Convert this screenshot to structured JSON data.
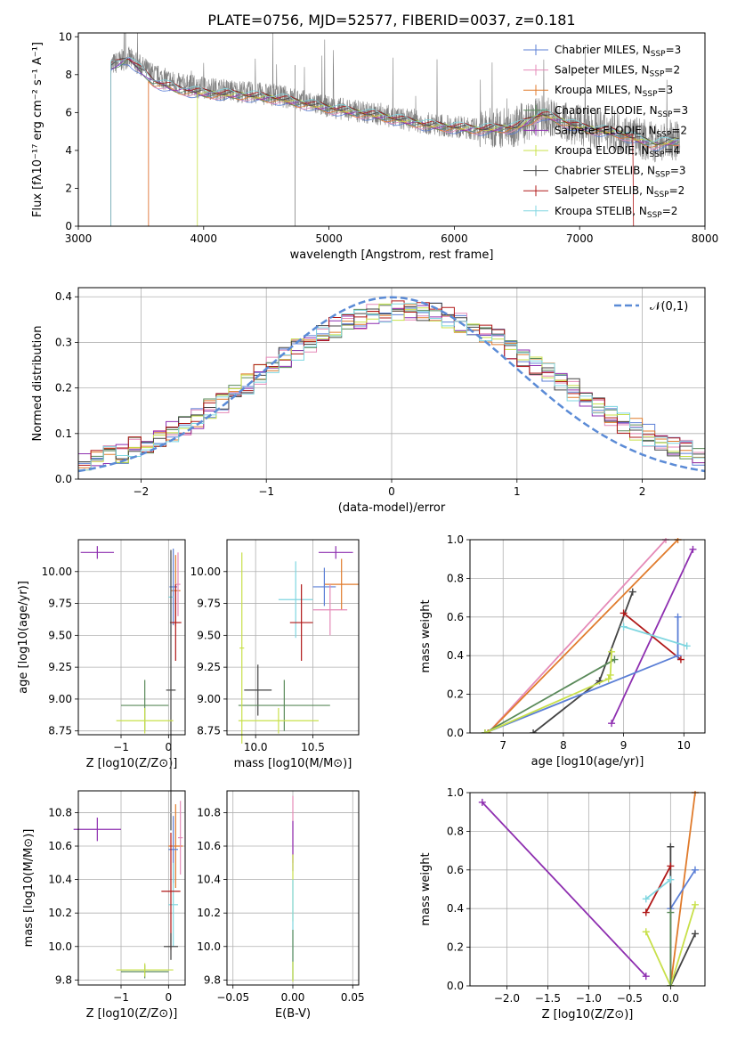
{
  "figure_title": "PLATE=0756, MJD=52577, FIBERID=0037, z=0.181",
  "colors": {
    "chabrier_miles": "#5b7fd6",
    "salpeter_miles": "#e58ab8",
    "kroupa_miles": "#e07b2c",
    "chabrier_elodie": "#5a8a5a",
    "salpeter_elodie": "#8e2fb0",
    "kroupa_elodie": "#c8e04a",
    "chabrier_stelib": "#444444",
    "salpeter_stelib": "#b01818",
    "kroupa_stelib": "#7fd6e0",
    "data": "#808080",
    "gaussian": "#5b8bd6"
  },
  "chart_data": [
    {
      "id": "spectrum",
      "type": "line",
      "title": "PLATE=0756, MJD=52577, FIBERID=0037, z=0.181",
      "xlabel": "wavelength [Angstrom, rest frame]",
      "ylabel": "Flux [fλ10⁻¹⁷ erg cm⁻² s⁻¹ A⁻¹]",
      "xlim": [
        3000,
        8000
      ],
      "ylim": [
        0,
        10.2
      ],
      "xticks": [
        3000,
        4000,
        5000,
        6000,
        7000,
        8000
      ],
      "yticks": [
        0,
        2,
        4,
        6,
        8,
        10
      ],
      "grid": false,
      "legend_position": "top-right",
      "legend": [
        {
          "model": "Chabrier MILES",
          "nssp": "3",
          "color_key": "chabrier_miles"
        },
        {
          "model": "Salpeter MILES",
          "nssp": "2",
          "color_key": "salpeter_miles"
        },
        {
          "model": "Kroupa MILES",
          "nssp": "3",
          "color_key": "kroupa_miles"
        },
        {
          "model": "Chabrier ELODIE",
          "nssp": "3",
          "color_key": "chabrier_elodie"
        },
        {
          "model": "Salpeter ELODIE",
          "nssp": "2",
          "color_key": "salpeter_elodie"
        },
        {
          "model": "Kroupa ELODIE",
          "nssp": "4",
          "color_key": "kroupa_elodie"
        },
        {
          "model": "Chabrier STELIB",
          "nssp": "3",
          "color_key": "chabrier_stelib"
        },
        {
          "model": "Salpeter STELIB",
          "nssp": "2",
          "color_key": "salpeter_stelib"
        },
        {
          "model": "Kroupa STELIB",
          "nssp": "2",
          "color_key": "kroupa_stelib"
        }
      ],
      "nssp_label": "N_SSP=",
      "data_envelope": {
        "x": [
          3260,
          3400,
          3600,
          3800,
          4000,
          4300,
          4600,
          5000,
          5400,
          5800,
          6200,
          6500,
          6700,
          7000,
          7300,
          7600,
          7800
        ],
        "y": [
          8.5,
          8.9,
          8.0,
          7.5,
          7.3,
          7.1,
          6.9,
          6.3,
          5.9,
          5.4,
          5.1,
          5.3,
          5.8,
          5.3,
          5.0,
          4.4,
          4.6
        ]
      },
      "model_envelope": {
        "x": [
          3260,
          3400,
          3600,
          3800,
          4000,
          4300,
          4600,
          5000,
          5400,
          5800,
          6200,
          6500,
          6700,
          7000,
          7300,
          7600,
          7800
        ],
        "y": [
          8.4,
          8.8,
          7.6,
          7.2,
          7.0,
          6.9,
          6.7,
          6.2,
          5.8,
          5.3,
          5.1,
          5.2,
          5.9,
          5.2,
          4.9,
          4.3,
          4.5
        ]
      },
      "model_start_wavelength": [
        3260,
        3560,
        3560,
        3260,
        3260,
        3950,
        3260,
        3260,
        3260
      ],
      "model_end_wavelength": [
        7800,
        7800,
        7800,
        7800,
        7800,
        7800,
        7800,
        7430,
        7800
      ]
    },
    {
      "id": "residuals",
      "type": "histogram",
      "xlabel": "(data-model)/error",
      "ylabel": "Normed distribution",
      "xlim": [
        -2.5,
        2.5
      ],
      "ylim": [
        0,
        0.42
      ],
      "xticks": [
        -2,
        -1,
        0,
        1,
        2
      ],
      "yticks": [
        0.0,
        0.1,
        0.2,
        0.3,
        0.4
      ],
      "grid": true,
      "legend_position": "top-right",
      "gaussian_label": "𝒩(0,1)",
      "bin_width": 0.1
    },
    {
      "id": "age_vs_Z",
      "type": "errorbar",
      "xlabel": "Z [log10(Z/Z⊙)]",
      "ylabel": "age  [log10(age/yr)]",
      "xlim": [
        -1.9,
        0.35
      ],
      "ylim": [
        8.72,
        10.25
      ],
      "xticks": [
        -1,
        0
      ],
      "yticks": [
        8.75,
        9.0,
        9.25,
        9.5,
        9.75,
        10.0
      ],
      "grid": true,
      "points": [
        {
          "x": -1.5,
          "y": 10.15,
          "xerr": 0.35,
          "yerr": 0.05,
          "color_key": "salpeter_elodie"
        },
        {
          "x": 0.15,
          "y": 9.85,
          "xerr": 0.1,
          "yerr": 0.28,
          "color_key": "kroupa_miles"
        },
        {
          "x": 0.2,
          "y": 9.9,
          "xerr": 0.05,
          "yerr": 0.25,
          "color_key": "salpeter_miles"
        },
        {
          "x": 0.1,
          "y": 9.88,
          "xerr": 0.08,
          "yerr": 0.3,
          "color_key": "chabrier_miles"
        },
        {
          "x": 0.05,
          "y": 9.8,
          "xerr": 0.05,
          "yerr": 0.3,
          "color_key": "kroupa_stelib"
        },
        {
          "x": 0.15,
          "y": 9.6,
          "xerr": 0.12,
          "yerr": 0.3,
          "color_key": "salpeter_stelib"
        },
        {
          "x": 0.05,
          "y": 9.07,
          "xerr": 0.1,
          "yerr": 1.1,
          "color_key": "chabrier_stelib"
        },
        {
          "x": -0.5,
          "y": 8.95,
          "xerr": 0.5,
          "yerr": 0.2,
          "color_key": "chabrier_elodie"
        },
        {
          "x": -0.5,
          "y": 8.83,
          "xerr": 0.6,
          "yerr": 0.1,
          "color_key": "kroupa_elodie"
        }
      ]
    },
    {
      "id": "age_vs_mass",
      "type": "errorbar",
      "xlabel": "mass [log10(M/M⊙)]",
      "ylabel": "",
      "xlim": [
        9.75,
        10.9
      ],
      "ylim": [
        8.72,
        10.25
      ],
      "xticks": [
        10.0,
        10.5
      ],
      "yticks": [
        8.75,
        9.0,
        9.25,
        9.5,
        9.75,
        10.0
      ],
      "grid": true,
      "points": [
        {
          "x": 10.7,
          "y": 10.15,
          "xerr": 0.15,
          "yerr": 0.05,
          "color_key": "salpeter_elodie"
        },
        {
          "x": 10.75,
          "y": 9.9,
          "xerr": 0.15,
          "yerr": 0.2,
          "color_key": "kroupa_miles"
        },
        {
          "x": 10.6,
          "y": 9.88,
          "xerr": 0.1,
          "yerr": 0.15,
          "color_key": "chabrier_miles"
        },
        {
          "x": 10.65,
          "y": 9.7,
          "xerr": 0.15,
          "yerr": 0.2,
          "color_key": "salpeter_miles"
        },
        {
          "x": 10.35,
          "y": 9.78,
          "xerr": 0.15,
          "yerr": 0.3,
          "color_key": "kroupa_stelib"
        },
        {
          "x": 10.4,
          "y": 9.6,
          "xerr": 0.1,
          "yerr": 0.3,
          "color_key": "salpeter_stelib"
        },
        {
          "x": 10.02,
          "y": 9.07,
          "xerr": 0.12,
          "yerr": 0.2,
          "color_key": "chabrier_stelib"
        },
        {
          "x": 10.25,
          "y": 8.95,
          "xerr": 0.4,
          "yerr": 0.2,
          "color_key": "chabrier_elodie"
        },
        {
          "x": 10.2,
          "y": 8.83,
          "xerr": 0.35,
          "yerr": 0.1,
          "color_key": "kroupa_elodie"
        },
        {
          "x": 9.88,
          "y": 9.4,
          "xerr": 0.02,
          "yerr": 0.75,
          "color_key": "kroupa_elodie"
        }
      ]
    },
    {
      "id": "weight_vs_age",
      "type": "line",
      "xlabel": "age  [log10(age/yr)]",
      "ylabel": "mass weight",
      "xlim": [
        6.45,
        10.35
      ],
      "ylim": [
        0,
        1.0
      ],
      "xticks": [
        7,
        8,
        9,
        10
      ],
      "yticks": [
        0.0,
        0.2,
        0.4,
        0.6,
        0.8,
        1.0
      ],
      "grid": true,
      "series": [
        {
          "color_key": "salpeter_miles",
          "x": [
            6.75,
            9.7
          ],
          "y": [
            0.0,
            1.0
          ]
        },
        {
          "color_key": "kroupa_miles",
          "x": [
            6.75,
            9.9
          ],
          "y": [
            0.0,
            1.0
          ]
        },
        {
          "color_key": "salpeter_elodie",
          "x": [
            8.8,
            10.15
          ],
          "y": [
            0.05,
            0.95
          ]
        },
        {
          "color_key": "chabrier_stelib",
          "x": [
            7.5,
            8.6,
            9.15
          ],
          "y": [
            0.0,
            0.27,
            0.73
          ]
        },
        {
          "color_key": "salpeter_stelib",
          "x": [
            9.0,
            9.95
          ],
          "y": [
            0.62,
            0.38
          ]
        },
        {
          "color_key": "chabrier_miles",
          "x": [
            6.7,
            9.9,
            9.9
          ],
          "y": [
            0.0,
            0.4,
            0.6
          ]
        },
        {
          "color_key": "kroupa_stelib",
          "x": [
            9.0,
            10.05
          ],
          "y": [
            0.55,
            0.45
          ]
        },
        {
          "color_key": "chabrier_elodie",
          "x": [
            6.7,
            8.85
          ],
          "y": [
            0.0,
            0.38
          ]
        },
        {
          "color_key": "kroupa_elodie",
          "x": [
            6.7,
            8.75,
            8.78,
            8.8
          ],
          "y": [
            0.0,
            0.28,
            0.3,
            0.42
          ]
        }
      ]
    },
    {
      "id": "mass_vs_Z",
      "type": "errorbar",
      "xlabel": "Z [log10(Z/Z⊙)]",
      "ylabel": "mass [log10(M/M⊙)]",
      "xlim": [
        -1.9,
        0.35
      ],
      "ylim": [
        9.77,
        10.93
      ],
      "xticks": [
        -1,
        0
      ],
      "yticks": [
        9.8,
        10.0,
        10.2,
        10.4,
        10.6,
        10.8
      ],
      "grid": true,
      "points": [
        {
          "x": -1.5,
          "y": 10.7,
          "xerr": 0.5,
          "yerr": 0.07,
          "color_key": "salpeter_elodie"
        },
        {
          "x": 0.15,
          "y": 10.6,
          "xerr": 0.15,
          "yerr": 0.25,
          "color_key": "kroupa_miles"
        },
        {
          "x": 0.25,
          "y": 10.65,
          "xerr": 0.05,
          "yerr": 0.22,
          "color_key": "salpeter_miles"
        },
        {
          "x": 0.1,
          "y": 10.58,
          "xerr": 0.1,
          "yerr": 0.2,
          "color_key": "chabrier_miles"
        },
        {
          "x": 0.1,
          "y": 10.25,
          "xerr": 0.1,
          "yerr": 0.25,
          "color_key": "kroupa_stelib"
        },
        {
          "x": 0.05,
          "y": 10.33,
          "xerr": 0.2,
          "yerr": 0.35,
          "color_key": "salpeter_stelib"
        },
        {
          "x": 0.05,
          "y": 10.0,
          "xerr": 0.15,
          "yerr": 0.08,
          "color_key": "chabrier_stelib"
        },
        {
          "x": -0.5,
          "y": 9.85,
          "xerr": 0.5,
          "yerr": 0.04,
          "color_key": "chabrier_elodie"
        },
        {
          "x": -0.5,
          "y": 9.86,
          "xerr": 0.6,
          "yerr": 0.04,
          "color_key": "kroupa_elodie"
        }
      ]
    },
    {
      "id": "mass_vs_ebv",
      "type": "errorbar",
      "xlabel": "E(B-V)",
      "ylabel": "",
      "xlim": [
        -0.055,
        0.055
      ],
      "ylim": [
        9.77,
        10.93
      ],
      "xticks": [
        -0.05,
        0.0,
        0.05
      ],
      "yticks": [
        9.8,
        10.0,
        10.2,
        10.4,
        10.6,
        10.8
      ],
      "grid": true,
      "points": [
        {
          "x": 0.0,
          "y": 10.7,
          "xerr": 0.0,
          "yerr": 0.2,
          "color_key": "salpeter_miles"
        },
        {
          "x": 0.0,
          "y": 10.6,
          "xerr": 0.0,
          "yerr": 0.15,
          "color_key": "salpeter_elodie"
        },
        {
          "x": 0.0,
          "y": 10.35,
          "xerr": 0.0,
          "yerr": 0.2,
          "color_key": "kroupa_elodie"
        },
        {
          "x": 0.0,
          "y": 10.1,
          "xerr": 0.0,
          "yerr": 0.3,
          "color_key": "kroupa_stelib"
        },
        {
          "x": 0.0,
          "y": 9.95,
          "xerr": 0.0,
          "yerr": 0.15,
          "color_key": "chabrier_elodie"
        },
        {
          "x": 0.0,
          "y": 9.85,
          "xerr": 0.0,
          "yerr": 0.06,
          "color_key": "kroupa_elodie"
        }
      ]
    },
    {
      "id": "weight_vs_Z",
      "type": "line",
      "xlabel": "Z [log10(Z/Z⊙)]",
      "ylabel": "mass weight",
      "xlim": [
        -2.45,
        0.42
      ],
      "ylim": [
        0,
        1.0
      ],
      "xticks": [
        -2.0,
        -1.5,
        -1.0,
        -0.5,
        0.0
      ],
      "yticks": [
        0.0,
        0.2,
        0.4,
        0.6,
        0.8,
        1.0
      ],
      "grid": true,
      "series": [
        {
          "color_key": "salpeter_elodie",
          "x": [
            -2.3,
            -0.3
          ],
          "y": [
            0.95,
            0.05
          ]
        },
        {
          "color_key": "kroupa_miles",
          "x": [
            0.0,
            0.3
          ],
          "y": [
            0.0,
            1.0
          ]
        },
        {
          "color_key": "chabrier_miles",
          "x": [
            0.0,
            0.3
          ],
          "y": [
            0.4,
            0.6
          ]
        },
        {
          "color_key": "chabrier_stelib",
          "x": [
            0.0,
            0.0,
            0.3
          ],
          "y": [
            0.72,
            0.0,
            0.27
          ]
        },
        {
          "color_key": "salpeter_stelib",
          "x": [
            -0.3,
            0.0
          ],
          "y": [
            0.38,
            0.62
          ]
        },
        {
          "color_key": "kroupa_stelib",
          "x": [
            -0.3,
            0.0
          ],
          "y": [
            0.45,
            0.55
          ]
        },
        {
          "color_key": "kroupa_elodie",
          "x": [
            -0.3,
            0.0,
            0.3
          ],
          "y": [
            0.28,
            0.0,
            0.42
          ]
        },
        {
          "color_key": "chabrier_elodie",
          "x": [
            0.0,
            0.0
          ],
          "y": [
            0.0,
            0.38
          ]
        }
      ]
    }
  ]
}
